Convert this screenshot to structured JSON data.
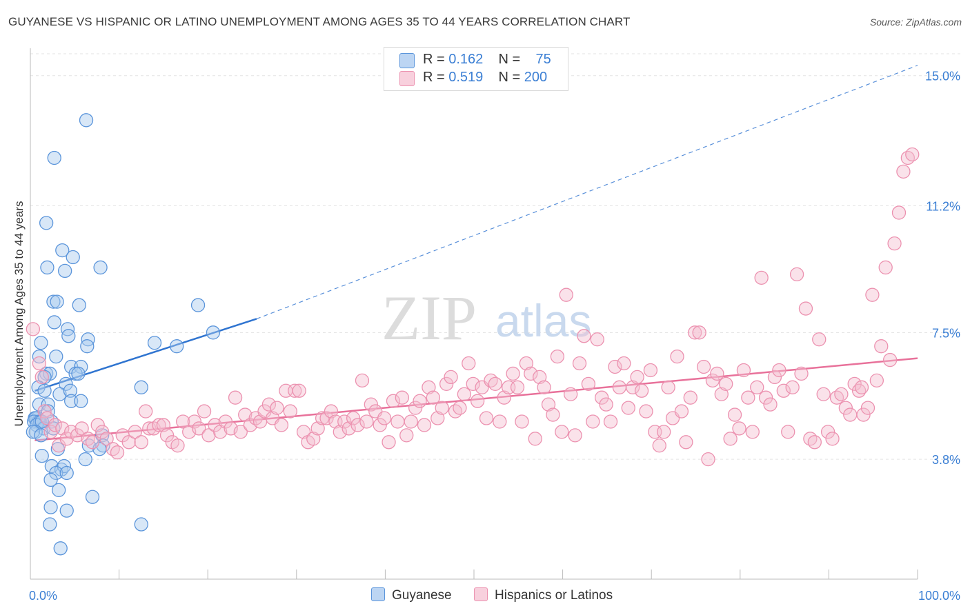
{
  "header": {
    "title": "GUYANESE VS HISPANIC OR LATINO UNEMPLOYMENT AMONG AGES 35 TO 44 YEARS CORRELATION CHART",
    "source": "Source: ZipAtlas.com"
  },
  "watermark": {
    "zip": "ZIP",
    "atlas": "atlas"
  },
  "legend_top": {
    "rows": [
      {
        "r_label": "R =",
        "r_value": "0.162",
        "n_label": "N =",
        "n_value": "75"
      },
      {
        "r_label": "R =",
        "r_value": "0.519",
        "n_label": "N =",
        "n_value": "200"
      }
    ]
  },
  "legend_bottom": {
    "items": [
      "Guyanese",
      "Hispanics or Latinos"
    ]
  },
  "colors": {
    "blue_fill": "#a9c9ee",
    "blue_stroke": "#5b95db",
    "blue_line": "#2f74d0",
    "pink_fill": "#f5bfd1",
    "pink_stroke": "#ec92b0",
    "pink_line": "#e8719a",
    "tick_text": "#3b7fd4",
    "grid": "#e3e3e3"
  },
  "chart_data": {
    "type": "scatter",
    "title": "GUYANESE VS HISPANIC OR LATINO UNEMPLOYMENT AMONG AGES 35 TO 44 YEARS CORRELATION CHART",
    "xlabel": "",
    "ylabel": "Unemployment Among Ages 35 to 44 years",
    "x_tick_labels": [
      "0.0%",
      "100.0%"
    ],
    "y_tick_labels": [
      "3.8%",
      "7.5%",
      "11.2%",
      "15.0%"
    ],
    "y_ticks": [
      3.8,
      7.5,
      11.2,
      15.0
    ],
    "xlim": [
      0,
      100
    ],
    "ylim": [
      0.3,
      15.8
    ],
    "grid": true,
    "legend_position": "top-center",
    "series": [
      {
        "name": "Guyanese",
        "color": "#5b95db",
        "trend": {
          "x": [
            0.5,
            25.5
          ],
          "y": [
            5.8,
            7.9
          ],
          "dashed_to": [
            100,
            15.3
          ]
        },
        "points": [
          [
            6.3,
            13.7
          ],
          [
            2.7,
            12.6
          ],
          [
            1.8,
            10.7
          ],
          [
            3.6,
            9.9
          ],
          [
            4.8,
            9.7
          ],
          [
            7.9,
            9.4
          ],
          [
            1.9,
            9.4
          ],
          [
            3.9,
            9.3
          ],
          [
            2.6,
            8.4
          ],
          [
            3.0,
            8.4
          ],
          [
            5.5,
            8.3
          ],
          [
            18.9,
            8.3
          ],
          [
            2.7,
            7.8
          ],
          [
            4.2,
            7.6
          ],
          [
            20.6,
            7.5
          ],
          [
            4.3,
            7.4
          ],
          [
            6.5,
            7.3
          ],
          [
            1.2,
            7.2
          ],
          [
            6.4,
            7.1
          ],
          [
            14.0,
            7.2
          ],
          [
            16.5,
            7.1
          ],
          [
            2.9,
            6.8
          ],
          [
            1.0,
            6.8
          ],
          [
            4.6,
            6.5
          ],
          [
            5.7,
            6.5
          ],
          [
            5.1,
            6.3
          ],
          [
            5.4,
            6.3
          ],
          [
            1.8,
            6.3
          ],
          [
            2.2,
            6.3
          ],
          [
            1.6,
            6.2
          ],
          [
            4.0,
            6.0
          ],
          [
            12.5,
            5.9
          ],
          [
            0.9,
            5.9
          ],
          [
            1.6,
            5.8
          ],
          [
            3.3,
            5.7
          ],
          [
            4.5,
            5.8
          ],
          [
            4.6,
            5.5
          ],
          [
            5.7,
            5.5
          ],
          [
            1.0,
            5.4
          ],
          [
            2.0,
            5.4
          ],
          [
            2.0,
            5.2
          ],
          [
            0.8,
            5.0
          ],
          [
            0.5,
            5.0
          ],
          [
            0.9,
            4.9
          ],
          [
            0.6,
            5.0
          ],
          [
            0.4,
            4.9
          ],
          [
            1.1,
            4.9
          ],
          [
            2.4,
            4.9
          ],
          [
            0.7,
            4.8
          ],
          [
            1.5,
            4.7
          ],
          [
            1.3,
            4.9
          ],
          [
            2.6,
            4.7
          ],
          [
            0.6,
            4.6
          ],
          [
            0.3,
            4.6
          ],
          [
            1.2,
            4.5
          ],
          [
            8.1,
            4.5
          ],
          [
            8.2,
            4.2
          ],
          [
            6.6,
            4.2
          ],
          [
            7.8,
            4.1
          ],
          [
            3.1,
            4.1
          ],
          [
            1.3,
            3.9
          ],
          [
            6.2,
            3.8
          ],
          [
            2.4,
            3.6
          ],
          [
            3.5,
            3.5
          ],
          [
            3.8,
            3.6
          ],
          [
            2.9,
            3.4
          ],
          [
            4.1,
            3.4
          ],
          [
            2.3,
            3.2
          ],
          [
            3.2,
            2.9
          ],
          [
            7.0,
            2.7
          ],
          [
            2.3,
            2.4
          ],
          [
            4.1,
            2.3
          ],
          [
            2.2,
            1.9
          ],
          [
            12.5,
            1.9
          ],
          [
            3.4,
            1.2
          ]
        ]
      },
      {
        "name": "Hispanics or Latinos",
        "color": "#ec92b0",
        "trend": {
          "x": [
            0.5,
            100
          ],
          "y": [
            4.35,
            6.75
          ]
        },
        "points": [
          [
            0.3,
            7.6
          ],
          [
            1.0,
            6.6
          ],
          [
            1.3,
            6.2
          ],
          [
            1.6,
            5.2
          ],
          [
            1.9,
            5.0
          ],
          [
            2.3,
            4.6
          ],
          [
            2.8,
            4.8
          ],
          [
            3.2,
            4.2
          ],
          [
            3.6,
            4.7
          ],
          [
            4.1,
            4.4
          ],
          [
            4.6,
            4.6
          ],
          [
            5.3,
            4.5
          ],
          [
            5.8,
            4.7
          ],
          [
            6.5,
            4.4
          ],
          [
            7.0,
            4.3
          ],
          [
            7.6,
            4.8
          ],
          [
            8.1,
            4.6
          ],
          [
            8.6,
            4.4
          ],
          [
            9.3,
            4.1
          ],
          [
            9.8,
            4.0
          ],
          [
            10.4,
            4.5
          ],
          [
            11.1,
            4.3
          ],
          [
            11.8,
            4.6
          ],
          [
            12.5,
            4.3
          ],
          [
            13.0,
            5.2
          ],
          [
            13.4,
            4.7
          ],
          [
            13.9,
            4.7
          ],
          [
            14.5,
            4.8
          ],
          [
            15.0,
            4.8
          ],
          [
            15.4,
            4.5
          ],
          [
            16.0,
            4.3
          ],
          [
            16.6,
            4.2
          ],
          [
            17.2,
            4.9
          ],
          [
            17.9,
            4.6
          ],
          [
            18.5,
            4.9
          ],
          [
            19.0,
            4.7
          ],
          [
            19.6,
            5.2
          ],
          [
            20.1,
            4.5
          ],
          [
            20.8,
            4.8
          ],
          [
            21.4,
            4.6
          ],
          [
            22.0,
            4.9
          ],
          [
            22.6,
            4.7
          ],
          [
            23.1,
            5.6
          ],
          [
            23.7,
            4.6
          ],
          [
            24.2,
            5.1
          ],
          [
            24.8,
            4.8
          ],
          [
            25.4,
            5.0
          ],
          [
            25.9,
            4.9
          ],
          [
            26.4,
            5.2
          ],
          [
            26.9,
            5.4
          ],
          [
            27.3,
            5.0
          ],
          [
            27.8,
            5.3
          ],
          [
            28.3,
            4.8
          ],
          [
            28.8,
            5.8
          ],
          [
            29.3,
            5.2
          ],
          [
            29.8,
            5.8
          ],
          [
            30.3,
            5.8
          ],
          [
            30.8,
            4.6
          ],
          [
            31.3,
            4.3
          ],
          [
            31.9,
            4.4
          ],
          [
            32.4,
            4.7
          ],
          [
            32.9,
            5.0
          ],
          [
            33.4,
            5.0
          ],
          [
            33.9,
            5.2
          ],
          [
            34.4,
            4.9
          ],
          [
            34.9,
            4.6
          ],
          [
            35.4,
            4.9
          ],
          [
            35.9,
            4.7
          ],
          [
            36.4,
            5.0
          ],
          [
            36.9,
            4.8
          ],
          [
            37.4,
            6.1
          ],
          [
            37.9,
            4.9
          ],
          [
            38.4,
            5.4
          ],
          [
            38.9,
            5.2
          ],
          [
            39.4,
            4.8
          ],
          [
            39.9,
            5.0
          ],
          [
            40.4,
            4.3
          ],
          [
            40.9,
            5.5
          ],
          [
            41.4,
            4.9
          ],
          [
            41.9,
            5.6
          ],
          [
            42.4,
            4.5
          ],
          [
            42.9,
            4.9
          ],
          [
            43.4,
            5.3
          ],
          [
            43.9,
            5.5
          ],
          [
            44.4,
            4.8
          ],
          [
            44.9,
            5.9
          ],
          [
            45.4,
            5.6
          ],
          [
            45.9,
            5.0
          ],
          [
            46.4,
            5.3
          ],
          [
            46.9,
            6.0
          ],
          [
            47.4,
            6.2
          ],
          [
            47.9,
            5.2
          ],
          [
            48.4,
            5.3
          ],
          [
            48.9,
            5.7
          ],
          [
            49.4,
            6.6
          ],
          [
            49.9,
            6.0
          ],
          [
            50.4,
            5.5
          ],
          [
            50.9,
            5.9
          ],
          [
            51.4,
            5.0
          ],
          [
            51.9,
            6.1
          ],
          [
            52.4,
            6.0
          ],
          [
            52.9,
            4.9
          ],
          [
            53.4,
            5.6
          ],
          [
            53.9,
            5.9
          ],
          [
            54.4,
            6.3
          ],
          [
            54.9,
            5.9
          ],
          [
            55.4,
            4.9
          ],
          [
            55.9,
            6.6
          ],
          [
            56.4,
            6.3
          ],
          [
            56.9,
            4.4
          ],
          [
            57.4,
            6.2
          ],
          [
            57.9,
            5.9
          ],
          [
            58.4,
            5.4
          ],
          [
            58.9,
            5.1
          ],
          [
            59.4,
            6.8
          ],
          [
            59.9,
            4.6
          ],
          [
            60.4,
            8.6
          ],
          [
            60.9,
            5.7
          ],
          [
            61.4,
            4.5
          ],
          [
            61.9,
            6.6
          ],
          [
            62.4,
            7.4
          ],
          [
            62.9,
            6.0
          ],
          [
            63.4,
            4.9
          ],
          [
            63.9,
            7.3
          ],
          [
            64.4,
            5.6
          ],
          [
            64.9,
            5.4
          ],
          [
            65.4,
            4.9
          ],
          [
            65.9,
            6.5
          ],
          [
            66.4,
            5.9
          ],
          [
            66.9,
            6.6
          ],
          [
            67.4,
            5.3
          ],
          [
            67.9,
            5.9
          ],
          [
            68.4,
            6.2
          ],
          [
            68.9,
            5.8
          ],
          [
            69.4,
            5.2
          ],
          [
            69.9,
            6.4
          ],
          [
            70.4,
            4.6
          ],
          [
            70.9,
            4.2
          ],
          [
            71.4,
            4.6
          ],
          [
            71.9,
            5.9
          ],
          [
            72.4,
            5.0
          ],
          [
            72.9,
            6.8
          ],
          [
            73.4,
            5.2
          ],
          [
            73.9,
            4.3
          ],
          [
            74.4,
            5.6
          ],
          [
            74.9,
            7.5
          ],
          [
            75.4,
            7.5
          ],
          [
            75.9,
            6.5
          ],
          [
            76.4,
            3.8
          ],
          [
            76.9,
            6.1
          ],
          [
            77.4,
            6.3
          ],
          [
            77.9,
            5.7
          ],
          [
            78.4,
            6.0
          ],
          [
            78.9,
            4.4
          ],
          [
            79.4,
            5.1
          ],
          [
            79.9,
            4.7
          ],
          [
            80.4,
            6.4
          ],
          [
            80.9,
            5.6
          ],
          [
            81.4,
            4.6
          ],
          [
            81.9,
            5.9
          ],
          [
            82.4,
            9.1
          ],
          [
            82.9,
            5.6
          ],
          [
            83.4,
            5.4
          ],
          [
            83.9,
            6.2
          ],
          [
            84.4,
            6.4
          ],
          [
            84.9,
            5.8
          ],
          [
            85.4,
            4.6
          ],
          [
            85.9,
            5.9
          ],
          [
            86.4,
            9.2
          ],
          [
            86.9,
            6.3
          ],
          [
            87.4,
            8.2
          ],
          [
            87.9,
            4.4
          ],
          [
            88.4,
            4.3
          ],
          [
            88.9,
            7.3
          ],
          [
            89.4,
            5.7
          ],
          [
            89.9,
            4.6
          ],
          [
            90.4,
            4.4
          ],
          [
            90.9,
            5.6
          ],
          [
            91.4,
            5.7
          ],
          [
            91.9,
            5.3
          ],
          [
            92.4,
            5.1
          ],
          [
            92.9,
            6.0
          ],
          [
            93.4,
            5.8
          ],
          [
            93.9,
            5.1
          ],
          [
            94.4,
            5.3
          ],
          [
            94.9,
            8.6
          ],
          [
            95.4,
            6.1
          ],
          [
            95.9,
            7.1
          ],
          [
            96.4,
            9.4
          ],
          [
            96.9,
            6.7
          ],
          [
            97.4,
            10.1
          ],
          [
            97.9,
            11.0
          ],
          [
            98.4,
            12.2
          ],
          [
            98.9,
            12.6
          ],
          [
            99.4,
            12.7
          ],
          [
            93.7,
            5.9
          ]
        ]
      }
    ]
  }
}
